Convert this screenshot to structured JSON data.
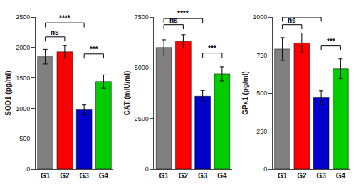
{
  "chart_data": [
    {
      "type": "bar",
      "ylabel": "SOD1 (pg/ml)",
      "categories": [
        "G1",
        "G2",
        "G3",
        "G4"
      ],
      "values": [
        1850,
        1930,
        975,
        1440
      ],
      "errors": [
        120,
        100,
        80,
        110
      ],
      "colors": [
        "#808080",
        "#ff0000",
        "#0000cc",
        "#00cc00"
      ],
      "ylim": [
        0,
        2500
      ],
      "yticks": [
        0,
        500,
        1000,
        1500,
        2000,
        2500
      ],
      "grid": false,
      "annotations": [
        {
          "x1": "G1",
          "x2": "G2",
          "y": 2100,
          "text": "ns"
        },
        {
          "x1": "G1",
          "x2": "G3",
          "y": 2330,
          "text": "****"
        },
        {
          "x1": "G3",
          "x2": "G4",
          "y": 1820,
          "text": "***"
        }
      ]
    },
    {
      "type": "bar",
      "ylabel": "CAT (mIU/ml)",
      "categories": [
        "G1",
        "G2",
        "G3",
        "G4"
      ],
      "values": [
        6000,
        6300,
        3600,
        4700
      ],
      "errors": [
        380,
        330,
        280,
        350
      ],
      "colors": [
        "#808080",
        "#ff0000",
        "#0000cc",
        "#00cc00"
      ],
      "ylim": [
        0,
        7500
      ],
      "yticks": [
        0,
        2500,
        5000,
        7500
      ],
      "grid": false,
      "annotations": [
        {
          "x1": "G1",
          "x2": "G2",
          "y": 6900,
          "text": "ns"
        },
        {
          "x1": "G1",
          "x2": "G3",
          "y": 7200,
          "text": "****"
        },
        {
          "x1": "G3",
          "x2": "G4",
          "y": 5500,
          "text": "***"
        }
      ]
    },
    {
      "type": "bar",
      "ylabel": "GPx1 (pg/ml)",
      "categories": [
        "G1",
        "G2",
        "G3",
        "G4"
      ],
      "values": [
        790,
        830,
        470,
        660
      ],
      "errors": [
        75,
        65,
        45,
        65
      ],
      "colors": [
        "#808080",
        "#ff0000",
        "#0000cc",
        "#00cc00"
      ],
      "ylim": [
        0,
        1000
      ],
      "yticks": [
        0,
        250,
        500,
        750,
        1000
      ],
      "grid": false,
      "annotations": [
        {
          "x1": "G1",
          "x2": "G2",
          "y": 920,
          "text": "ns"
        },
        {
          "x1": "G1",
          "x2": "G3",
          "y": 970,
          "text": "****"
        },
        {
          "x1": "G3",
          "x2": "G4",
          "y": 780,
          "text": "***"
        }
      ]
    }
  ]
}
